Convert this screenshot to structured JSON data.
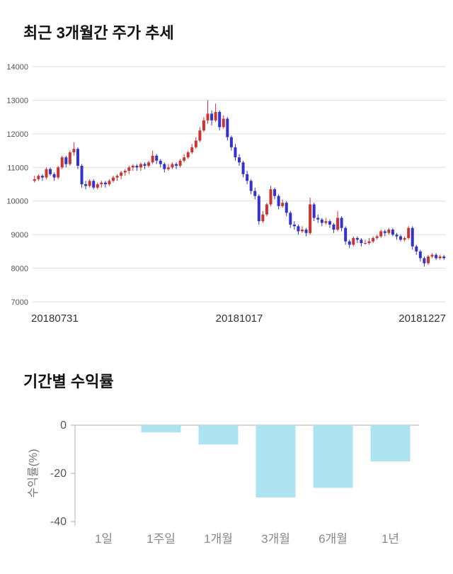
{
  "chart_data": [
    {
      "type": "candlestick",
      "title": "최근 3개월간 주가 추세",
      "ylim": [
        7000,
        14000
      ],
      "yticks": [
        7000,
        8000,
        9000,
        10000,
        11000,
        12000,
        13000,
        14000
      ],
      "x_labels": [
        "20180731",
        "20181017",
        "20181227"
      ],
      "up_color": "#cc3333",
      "down_color": "#3333cc",
      "grid_color": "#dddddd",
      "candles_ohlc": [
        [
          10600,
          10750,
          10550,
          10650
        ],
        [
          10650,
          10800,
          10600,
          10750
        ],
        [
          10750,
          10800,
          10600,
          10700
        ],
        [
          10700,
          11000,
          10650,
          10950
        ],
        [
          10950,
          11000,
          10750,
          10800
        ],
        [
          10800,
          10850,
          10600,
          10700
        ],
        [
          10700,
          11050,
          10650,
          11000
        ],
        [
          11000,
          11350,
          10950,
          11300
        ],
        [
          11300,
          11350,
          11000,
          11100
        ],
        [
          11100,
          11500,
          11050,
          11450
        ],
        [
          11450,
          11750,
          11350,
          11550
        ],
        [
          11550,
          11600,
          10950,
          11050
        ],
        [
          11050,
          11100,
          10400,
          10500
        ],
        [
          10500,
          10600,
          10350,
          10450
        ],
        [
          10450,
          10650,
          10400,
          10600
        ],
        [
          10600,
          10650,
          10350,
          10400
        ],
        [
          10400,
          10550,
          10350,
          10500
        ],
        [
          10500,
          10600,
          10400,
          10550
        ],
        [
          10550,
          10600,
          10400,
          10500
        ],
        [
          10500,
          10650,
          10450,
          10600
        ],
        [
          10600,
          10750,
          10550,
          10700
        ],
        [
          10700,
          10800,
          10600,
          10750
        ],
        [
          10750,
          10900,
          10650,
          10850
        ],
        [
          10850,
          10950,
          10750,
          10900
        ],
        [
          10900,
          11050,
          10800,
          11000
        ],
        [
          11000,
          11100,
          10900,
          11050
        ],
        [
          11050,
          11100,
          10900,
          11000
        ],
        [
          11000,
          11150,
          10900,
          11100
        ],
        [
          11100,
          11150,
          10950,
          11050
        ],
        [
          11050,
          11200,
          11000,
          11150
        ],
        [
          11150,
          11500,
          11100,
          11350
        ],
        [
          11350,
          11400,
          11100,
          11200
        ],
        [
          11200,
          11250,
          11000,
          11100
        ],
        [
          11100,
          11150,
          10850,
          10950
        ],
        [
          10950,
          11100,
          10900,
          11000
        ],
        [
          11000,
          11150,
          10950,
          11100
        ],
        [
          11100,
          11150,
          10950,
          11050
        ],
        [
          11050,
          11250,
          11000,
          11200
        ],
        [
          11200,
          11400,
          11150,
          11300
        ],
        [
          11300,
          11500,
          11250,
          11450
        ],
        [
          11450,
          11700,
          11400,
          11600
        ],
        [
          11600,
          11900,
          11550,
          11800
        ],
        [
          11800,
          12200,
          11750,
          12100
        ],
        [
          12100,
          12500,
          12050,
          12400
        ],
        [
          12400,
          13000,
          12300,
          12600
        ],
        [
          12600,
          12700,
          12250,
          12400
        ],
        [
          12400,
          12900,
          12350,
          12650
        ],
        [
          12650,
          12700,
          12100,
          12200
        ],
        [
          12200,
          12550,
          12150,
          12450
        ],
        [
          12450,
          12500,
          11800,
          11900
        ],
        [
          11900,
          11950,
          11500,
          11600
        ],
        [
          11600,
          11700,
          11200,
          11300
        ],
        [
          11300,
          11400,
          11050,
          11150
        ],
        [
          11150,
          11200,
          10700,
          10800
        ],
        [
          10800,
          10900,
          10500,
          10600
        ],
        [
          10600,
          10650,
          10200,
          10300
        ],
        [
          10300,
          10400,
          10050,
          10150
        ],
        [
          10150,
          10200,
          9300,
          9400
        ],
        [
          9400,
          9700,
          9350,
          9600
        ],
        [
          9600,
          9950,
          9550,
          9900
        ],
        [
          9900,
          10450,
          9850,
          10350
        ],
        [
          10350,
          10400,
          10050,
          10150
        ],
        [
          10150,
          10200,
          9750,
          9850
        ],
        [
          9850,
          10050,
          9800,
          9950
        ],
        [
          9950,
          10000,
          9550,
          9650
        ],
        [
          9650,
          9700,
          9200,
          9300
        ],
        [
          9300,
          9400,
          9150,
          9250
        ],
        [
          9250,
          9300,
          9000,
          9100
        ],
        [
          9100,
          9250,
          9050,
          9150
        ],
        [
          9150,
          9200,
          8950,
          9050
        ],
        [
          9050,
          10100,
          9000,
          9900
        ],
        [
          9900,
          9950,
          9400,
          9500
        ],
        [
          9500,
          9600,
          9350,
          9450
        ],
        [
          9450,
          9500,
          9250,
          9350
        ],
        [
          9350,
          9500,
          9300,
          9400
        ],
        [
          9400,
          9450,
          9200,
          9300
        ],
        [
          9300,
          9350,
          9050,
          9150
        ],
        [
          9150,
          9700,
          9100,
          9500
        ],
        [
          9500,
          9550,
          9100,
          9200
        ],
        [
          9200,
          9250,
          8700,
          8800
        ],
        [
          8800,
          8850,
          8600,
          8700
        ],
        [
          8700,
          8950,
          8650,
          8900
        ],
        [
          8900,
          8950,
          8750,
          8850
        ],
        [
          8850,
          8900,
          8650,
          8750
        ],
        [
          8750,
          8850,
          8700,
          8750
        ],
        [
          8750,
          8900,
          8700,
          8800
        ],
        [
          8800,
          8950,
          8750,
          8900
        ],
        [
          8900,
          9000,
          8850,
          8950
        ],
        [
          8950,
          9150,
          8900,
          9100
        ],
        [
          9100,
          9150,
          8950,
          9050
        ],
        [
          9050,
          9200,
          9000,
          9150
        ],
        [
          9150,
          9200,
          8950,
          9000
        ],
        [
          9000,
          9050,
          8850,
          8950
        ],
        [
          8950,
          9000,
          8800,
          8850
        ],
        [
          8850,
          8950,
          8800,
          8900
        ],
        [
          8900,
          9250,
          8850,
          9200
        ],
        [
          9200,
          9250,
          8550,
          8650
        ],
        [
          8650,
          8700,
          8400,
          8500
        ],
        [
          8500,
          8550,
          8200,
          8300
        ],
        [
          8300,
          8350,
          8050,
          8150
        ],
        [
          8150,
          8400,
          8100,
          8350
        ],
        [
          8350,
          8450,
          8300,
          8400
        ],
        [
          8400,
          8450,
          8250,
          8300
        ],
        [
          8300,
          8400,
          8250,
          8350
        ],
        [
          8350,
          8400,
          8250,
          8300
        ]
      ]
    },
    {
      "type": "bar",
      "title": "기간별 수익률",
      "ylabel": "수익률(%)",
      "categories": [
        "1일",
        "1주일",
        "1개월",
        "3개월",
        "6개월",
        "1년"
      ],
      "values": [
        0,
        -3,
        -8,
        -30,
        -26,
        -15
      ],
      "ylim": [
        -40,
        0
      ],
      "yticks": [
        0,
        -20,
        -40
      ],
      "bar_color": "#aee4f1",
      "axis_color": "#b0b0b0",
      "legend": "none",
      "grid": "off"
    }
  ]
}
